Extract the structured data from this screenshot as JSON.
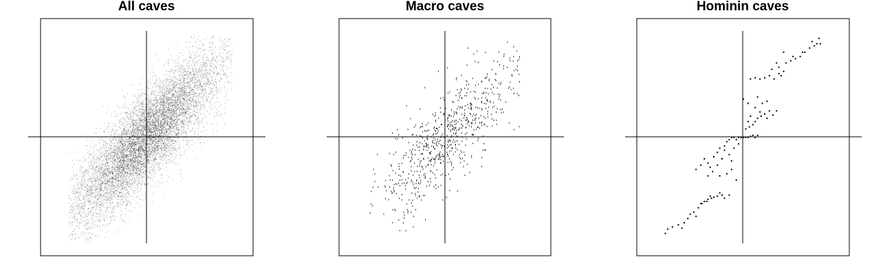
{
  "chart_data": [
    {
      "type": "scatter",
      "title": "All caves",
      "xlabel": "",
      "ylabel": "",
      "grid": false,
      "legend": "none",
      "xlim": [
        -1.0,
        1.0
      ],
      "ylim": [
        -1.0,
        1.0
      ],
      "reference_lines": {
        "x": 0,
        "y": 0
      },
      "distribution": {
        "shape": "dense elongated ellipse",
        "center": [
          0,
          0
        ],
        "correlation": 0.86,
        "sd": 0.33,
        "x_range": [
          -0.66,
          0.72
        ],
        "y_range": [
          -0.98,
          0.95
        ]
      },
      "point_color": "#000000"
    },
    {
      "type": "scatter",
      "title": "Macro caves",
      "xlabel": "",
      "ylabel": "",
      "grid": false,
      "legend": "none",
      "xlim": [
        -1.0,
        1.0
      ],
      "ylim": [
        -1.0,
        1.0
      ],
      "reference_lines": {
        "x": 0,
        "y": 0
      },
      "distribution": {
        "shape": "sparse elongated ellipse",
        "center": [
          0,
          0
        ],
        "correlation": 0.82,
        "sd": 0.32,
        "x_range": [
          -0.65,
          0.65
        ],
        "y_range": [
          -0.95,
          0.92
        ]
      },
      "point_color": "#000000"
    },
    {
      "type": "scatter",
      "title": "Hominin caves",
      "xlabel": "",
      "ylabel": "",
      "grid": false,
      "legend": "none",
      "xlim": [
        -1.0,
        1.0
      ],
      "ylim": [
        -1.0,
        1.0
      ],
      "reference_lines": {
        "x": 0,
        "y": 0
      },
      "points": [
        [
          -0.66,
          -0.9
        ],
        [
          -0.64,
          -0.86
        ],
        [
          -0.6,
          -0.84
        ],
        [
          -0.55,
          -0.82
        ],
        [
          -0.5,
          -0.8
        ],
        [
          -0.52,
          -0.85
        ],
        [
          -0.47,
          -0.76
        ],
        [
          -0.45,
          -0.72
        ],
        [
          -0.42,
          -0.7
        ],
        [
          -0.4,
          -0.74
        ],
        [
          -0.38,
          -0.66
        ],
        [
          -0.35,
          -0.62
        ],
        [
          -0.33,
          -0.6
        ],
        [
          -0.3,
          -0.58
        ],
        [
          -0.28,
          -0.55
        ],
        [
          -0.25,
          -0.56
        ],
        [
          -0.22,
          -0.55
        ],
        [
          -0.18,
          -0.54
        ],
        [
          -0.16,
          -0.57
        ],
        [
          -0.12,
          -0.54
        ],
        [
          -0.36,
          -0.62
        ],
        [
          -0.2,
          -0.52
        ],
        [
          -0.27,
          -0.57
        ],
        [
          -0.31,
          -0.6
        ],
        [
          -0.4,
          -0.3
        ],
        [
          -0.36,
          -0.26
        ],
        [
          -0.33,
          -0.2
        ],
        [
          -0.3,
          -0.24
        ],
        [
          -0.28,
          -0.28
        ],
        [
          -0.25,
          -0.18
        ],
        [
          -0.22,
          -0.14
        ],
        [
          -0.2,
          -0.1
        ],
        [
          -0.18,
          -0.2
        ],
        [
          -0.16,
          -0.08
        ],
        [
          -0.14,
          -0.04
        ],
        [
          -0.12,
          -0.02
        ],
        [
          -0.1,
          0.0
        ],
        [
          -0.08,
          0.0
        ],
        [
          -0.06,
          -0.02
        ],
        [
          -0.04,
          0.0
        ],
        [
          -0.02,
          0.0
        ],
        [
          0.0,
          0.0
        ],
        [
          0.02,
          0.0
        ],
        [
          0.04,
          0.0
        ],
        [
          0.06,
          0.01
        ],
        [
          0.08,
          0.02
        ],
        [
          0.1,
          0.0
        ],
        [
          0.12,
          0.02
        ],
        [
          -0.26,
          -0.32
        ],
        [
          -0.2,
          -0.36
        ],
        [
          -0.14,
          -0.34
        ],
        [
          -0.1,
          -0.3
        ],
        [
          -0.06,
          -0.4
        ],
        [
          -0.22,
          -0.26
        ],
        [
          -0.12,
          -0.16
        ],
        [
          -0.08,
          -0.1
        ],
        [
          -0.04,
          -0.06
        ],
        [
          -0.16,
          -0.12
        ],
        [
          -0.1,
          -0.22
        ],
        [
          -0.3,
          -0.36
        ],
        [
          0.02,
          0.08
        ],
        [
          0.05,
          0.1
        ],
        [
          0.08,
          0.12
        ],
        [
          0.1,
          0.15
        ],
        [
          0.12,
          0.18
        ],
        [
          0.15,
          0.2
        ],
        [
          0.18,
          0.22
        ],
        [
          0.2,
          0.18
        ],
        [
          0.04,
          0.15
        ],
        [
          0.22,
          0.25
        ],
        [
          0.06,
          0.2
        ],
        [
          0.14,
          0.24
        ],
        [
          0.25,
          0.21
        ],
        [
          0.28,
          0.25
        ],
        [
          0.0,
          0.36
        ],
        [
          0.04,
          0.32
        ],
        [
          0.1,
          0.28
        ],
        [
          0.16,
          0.32
        ],
        [
          0.12,
          0.38
        ],
        [
          0.2,
          0.34
        ],
        [
          0.06,
          0.55
        ],
        [
          0.1,
          0.56
        ],
        [
          0.14,
          0.55
        ],
        [
          0.18,
          0.56
        ],
        [
          0.22,
          0.58
        ],
        [
          0.26,
          0.55
        ],
        [
          0.3,
          0.6
        ],
        [
          0.24,
          0.64
        ],
        [
          0.3,
          0.66
        ],
        [
          0.34,
          0.62
        ],
        [
          0.36,
          0.7
        ],
        [
          0.4,
          0.72
        ],
        [
          0.44,
          0.74
        ],
        [
          0.48,
          0.76
        ],
        [
          0.52,
          0.8
        ],
        [
          0.56,
          0.84
        ],
        [
          0.6,
          0.86
        ],
        [
          0.62,
          0.88
        ],
        [
          0.65,
          0.88
        ],
        [
          0.64,
          0.93
        ],
        [
          0.58,
          0.9
        ],
        [
          0.5,
          0.8
        ],
        [
          0.28,
          0.7
        ],
        [
          0.34,
          0.8
        ],
        [
          0.32,
          0.58
        ],
        [
          0.42,
          0.76
        ]
      ],
      "point_color": "#000000"
    }
  ]
}
